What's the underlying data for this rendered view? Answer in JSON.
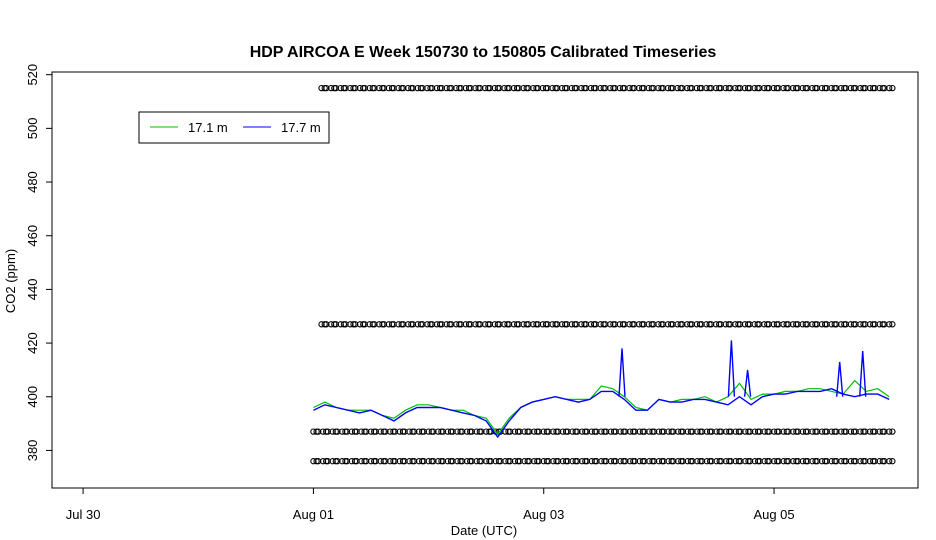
{
  "chart_data": {
    "type": "line",
    "title": "HDP AIRCOA E  Week 150730 to 150805  Calibrated Timeseries",
    "xlabel": "Date (UTC)",
    "ylabel": "CO2 (ppm)",
    "x_tick_labels": [
      "Jul 30",
      "Aug 01",
      "Aug 03",
      "Aug 05"
    ],
    "x_tick_values": [
      0,
      2,
      4,
      6
    ],
    "xlim": [
      -0.27,
      7.25
    ],
    "y_ticks": [
      380,
      400,
      420,
      440,
      460,
      480,
      500,
      520
    ],
    "ylim": [
      366,
      521
    ],
    "grid": false,
    "legend": {
      "position": "top-left",
      "entries": [
        "17.1 m",
        "17.7 m"
      ]
    },
    "colors": {
      "17.1 m": "#00c000",
      "17.7 m": "#0000ff",
      "markers": "#000000"
    },
    "series": [
      {
        "name": "17.1 m",
        "x": [
          2.0,
          2.1,
          2.2,
          2.3,
          2.4,
          2.5,
          2.6,
          2.7,
          2.8,
          2.9,
          3.0,
          3.1,
          3.2,
          3.3,
          3.4,
          3.5,
          3.6,
          3.7,
          3.8,
          3.9,
          4.0,
          4.1,
          4.2,
          4.3,
          4.4,
          4.5,
          4.6,
          4.7,
          4.8,
          4.9,
          5.0,
          5.1,
          5.2,
          5.3,
          5.4,
          5.5,
          5.6,
          5.7,
          5.8,
          5.9,
          6.0,
          6.1,
          6.2,
          6.3,
          6.4,
          6.5,
          6.6,
          6.7,
          6.8,
          6.9,
          7.0
        ],
        "y": [
          396,
          398,
          396,
          395,
          395,
          395,
          393,
          392,
          395,
          397,
          397,
          396,
          395,
          395,
          393,
          392,
          386,
          392,
          396,
          398,
          399,
          400,
          399,
          399,
          399,
          404,
          403,
          400,
          396,
          395,
          399,
          398,
          399,
          399,
          400,
          398,
          400,
          405,
          399,
          401,
          401,
          402,
          402,
          403,
          403,
          402,
          401,
          406,
          402,
          403,
          400
        ]
      },
      {
        "name": "17.7 m",
        "x": [
          2.0,
          2.1,
          2.2,
          2.3,
          2.4,
          2.5,
          2.6,
          2.7,
          2.8,
          2.9,
          3.0,
          3.1,
          3.2,
          3.3,
          3.4,
          3.5,
          3.6,
          3.7,
          3.8,
          3.9,
          4.0,
          4.1,
          4.2,
          4.3,
          4.4,
          4.5,
          4.6,
          4.7,
          4.8,
          4.9,
          5.0,
          5.1,
          5.2,
          5.3,
          5.4,
          5.5,
          5.6,
          5.7,
          5.8,
          5.9,
          6.0,
          6.1,
          6.2,
          6.3,
          6.4,
          6.5,
          6.6,
          6.7,
          6.8,
          6.9,
          7.0
        ],
        "y": [
          395,
          397,
          396,
          395,
          394,
          395,
          393,
          391,
          394,
          396,
          396,
          396,
          395,
          394,
          393,
          391,
          385,
          391,
          396,
          398,
          399,
          400,
          399,
          398,
          399,
          402,
          402,
          399,
          395,
          395,
          399,
          398,
          398,
          399,
          399,
          398,
          397,
          400,
          397,
          400,
          401,
          401,
          402,
          402,
          402,
          403,
          401,
          400,
          401,
          401,
          399
        ]
      }
    ],
    "spikes": [
      {
        "x": 4.68,
        "y": 418
      },
      {
        "x": 5.63,
        "y": 421
      },
      {
        "x": 5.77,
        "y": 410
      },
      {
        "x": 6.57,
        "y": 413
      },
      {
        "x": 6.77,
        "y": 417
      }
    ],
    "marker_rows": [
      {
        "y": 515,
        "x_start": 2.07,
        "x_end": 7.0
      },
      {
        "y": 427,
        "x_start": 2.07,
        "x_end": 7.0
      },
      {
        "y": 387,
        "x_start": 2.0,
        "x_end": 7.0
      },
      {
        "y": 376,
        "x_start": 2.0,
        "x_end": 7.0
      }
    ]
  }
}
